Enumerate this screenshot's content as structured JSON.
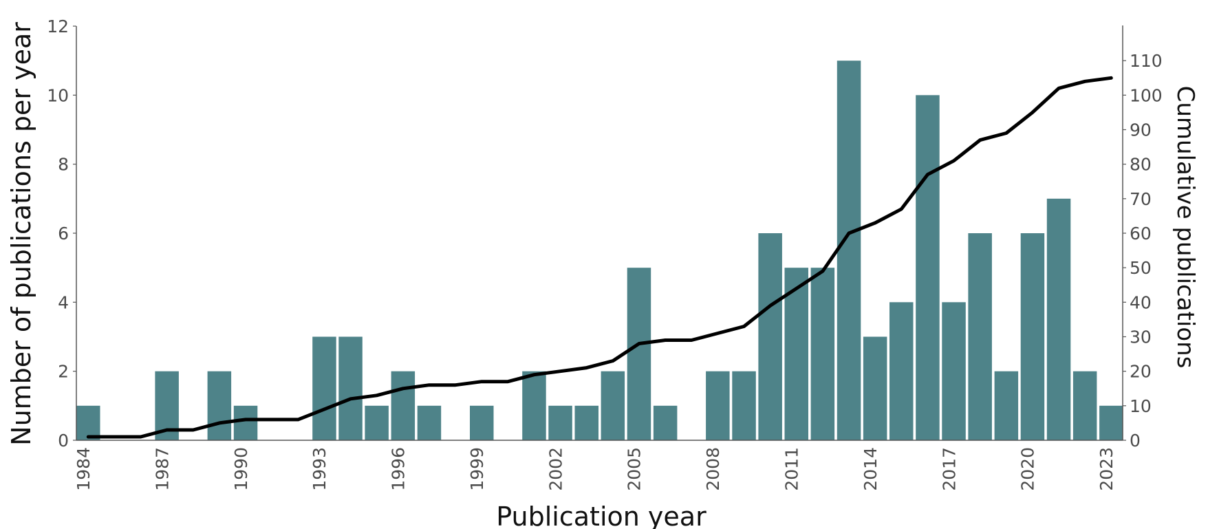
{
  "chart_data": {
    "type": "bar",
    "title": "",
    "xlabel": "Publication year",
    "ylabel": "Number of publications per year",
    "y2label": "Cumulative publications",
    "ylim": [
      0,
      12
    ],
    "y2lim": [
      0,
      110
    ],
    "yticks": [
      0,
      2,
      4,
      6,
      8,
      10,
      12
    ],
    "y2ticks": [
      0,
      10,
      20,
      30,
      40,
      50,
      60,
      70,
      80,
      90,
      100,
      110
    ],
    "xtick_labels": [
      "1984",
      "1987",
      "1990",
      "1993",
      "1996",
      "1999",
      "2002",
      "2005",
      "2008",
      "2011",
      "2014",
      "2017",
      "2020",
      "2023"
    ],
    "grid": false,
    "legend": null,
    "categories": [
      "1984",
      "1985",
      "1986",
      "1987",
      "1988",
      "1989",
      "1990",
      "1991",
      "1992",
      "1993",
      "1994",
      "1995",
      "1996",
      "1997",
      "1998",
      "1999",
      "2000",
      "2001",
      "2002",
      "2003",
      "2004",
      "2005",
      "2006",
      "2007",
      "2008",
      "2009",
      "2010",
      "2011",
      "2012",
      "2013",
      "2014",
      "2015",
      "2016",
      "2017",
      "2018",
      "2019",
      "2020",
      "2021",
      "2022",
      "2023"
    ],
    "series": [
      {
        "name": "Publications per year",
        "type": "bar",
        "axis": "left",
        "color": "#4e8389",
        "values": [
          1,
          0,
          0,
          2,
          0,
          2,
          1,
          0,
          0,
          3,
          3,
          1,
          2,
          1,
          0,
          1,
          0,
          2,
          1,
          1,
          2,
          5,
          1,
          0,
          2,
          2,
          6,
          5,
          5,
          11,
          3,
          4,
          10,
          4,
          6,
          2,
          6,
          7,
          2,
          1
        ]
      },
      {
        "name": "Cumulative publications",
        "type": "line",
        "axis": "right",
        "color": "#000000",
        "values": [
          1,
          1,
          1,
          3,
          3,
          5,
          6,
          6,
          6,
          9,
          12,
          13,
          15,
          16,
          16,
          17,
          17,
          19,
          20,
          21,
          23,
          28,
          29,
          29,
          31,
          33,
          39,
          44,
          49,
          60,
          63,
          67,
          77,
          81,
          87,
          89,
          95,
          102,
          104,
          105
        ]
      }
    ]
  },
  "colors": {
    "bar": "#4e8389",
    "line": "#000000",
    "axis": "#555555",
    "tick_text": "#4a4a4a"
  }
}
